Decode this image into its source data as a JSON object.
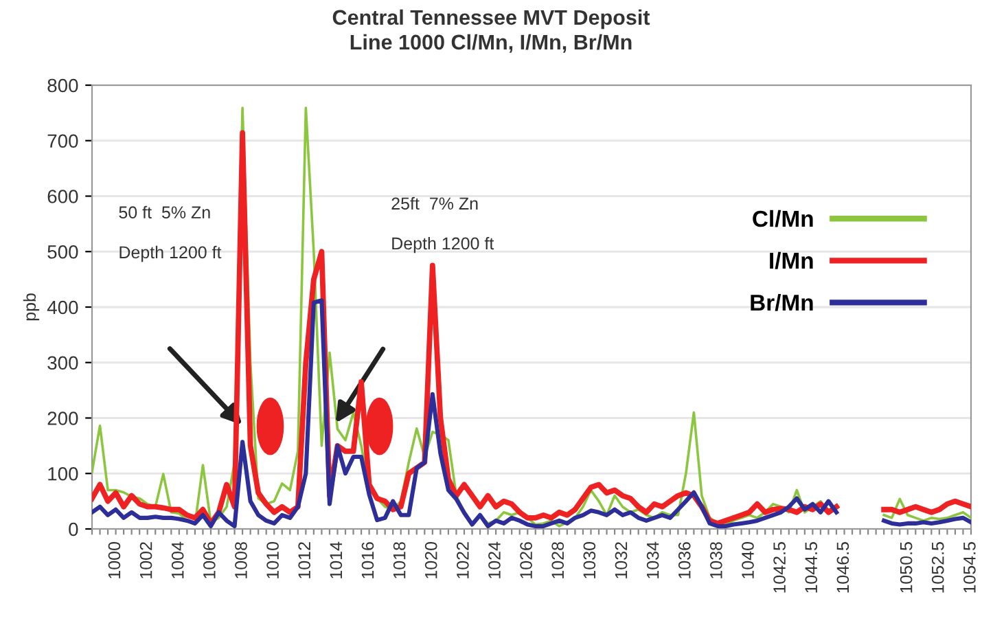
{
  "chart_data": {
    "type": "line",
    "title": "Central Tennessee MVT Deposit",
    "subtitle": "Line 1000 Cl/Mn, I/Mn, Br/Mn",
    "ylabel": "ppb",
    "categories": [
      null,
      null,
      null,
      "1000",
      null,
      null,
      null,
      "1002",
      null,
      null,
      null,
      "1004",
      null,
      null,
      null,
      "1006",
      null,
      null,
      null,
      "1008",
      null,
      null,
      null,
      "1010",
      null,
      null,
      null,
      "1012",
      null,
      null,
      null,
      "1014",
      null,
      null,
      null,
      "1016",
      null,
      null,
      null,
      "1018",
      null,
      null,
      null,
      "1020",
      null,
      null,
      null,
      "1022",
      null,
      null,
      null,
      "1024",
      null,
      null,
      null,
      "1026",
      null,
      null,
      null,
      "1028",
      null,
      null,
      null,
      "1030",
      null,
      null,
      null,
      "1032",
      null,
      null,
      null,
      "1034",
      null,
      null,
      null,
      "1036",
      null,
      null,
      null,
      "1038",
      null,
      null,
      null,
      "1040",
      null,
      null,
      null,
      "1042.5",
      null,
      null,
      null,
      "1044.5",
      null,
      null,
      null,
      "1046.5",
      null,
      null,
      null,
      null,
      null,
      null,
      null,
      "1050.5",
      null,
      null,
      null,
      "1052.5",
      null,
      null,
      null,
      "1054.5"
    ],
    "series": [
      {
        "name": "Cl/Mn",
        "color": "#8cc63f",
        "values": [
          103,
          186,
          70,
          70,
          66,
          58,
          55,
          45,
          40,
          99,
          30,
          28,
          15,
          8,
          115,
          12,
          20,
          40,
          120,
          759,
          300,
          55,
          45,
          50,
          82,
          70,
          140,
          759,
          500,
          150,
          318,
          180,
          160,
          210,
          150,
          70,
          55,
          40,
          35,
          50,
          120,
          181,
          130,
          175,
          170,
          160,
          60,
          30,
          10,
          25,
          10,
          15,
          30,
          25,
          30,
          20,
          8,
          10,
          15,
          5,
          12,
          20,
          40,
          70,
          50,
          25,
          60,
          40,
          30,
          35,
          25,
          20,
          30,
          25,
          25,
          100,
          210,
          60,
          20,
          10,
          8,
          15,
          20,
          25,
          20,
          30,
          45,
          40,
          30,
          70,
          30,
          40,
          50,
          30,
          40,
          null,
          null,
          null,
          null,
          null,
          25,
          20,
          54,
          25,
          20,
          15,
          20,
          18,
          20,
          25,
          30,
          20
        ]
      },
      {
        "name": "I/Mn",
        "color": "#ee2222",
        "values": [
          55,
          80,
          50,
          65,
          40,
          60,
          45,
          40,
          40,
          38,
          35,
          35,
          25,
          20,
          35,
          10,
          30,
          80,
          40,
          714,
          150,
          65,
          45,
          30,
          40,
          30,
          40,
          300,
          450,
          500,
          60,
          150,
          140,
          140,
          265,
          80,
          55,
          50,
          35,
          40,
          100,
          110,
          120,
          475,
          200,
          90,
          60,
          80,
          60,
          40,
          60,
          40,
          50,
          45,
          30,
          20,
          20,
          25,
          20,
          30,
          25,
          35,
          55,
          75,
          80,
          65,
          70,
          60,
          55,
          40,
          30,
          45,
          40,
          50,
          60,
          65,
          60,
          40,
          15,
          10,
          15,
          20,
          25,
          30,
          45,
          30,
          35,
          37,
          35,
          30,
          40,
          35,
          45,
          30,
          40,
          null,
          null,
          null,
          null,
          null,
          35,
          35,
          30,
          35,
          40,
          35,
          30,
          35,
          45,
          50,
          45,
          40
        ]
      },
      {
        "name": "Br/Mn",
        "color": "#2e2e99",
        "values": [
          30,
          40,
          25,
          35,
          20,
          30,
          20,
          20,
          22,
          20,
          20,
          18,
          15,
          10,
          25,
          5,
          30,
          15,
          5,
          157,
          50,
          25,
          15,
          10,
          25,
          20,
          40,
          100,
          408,
          412,
          45,
          150,
          100,
          130,
          130,
          62,
          16,
          20,
          50,
          25,
          25,
          110,
          120,
          243,
          136,
          70,
          54,
          29,
          8,
          25,
          5,
          15,
          10,
          20,
          15,
          8,
          5,
          5,
          10,
          15,
          10,
          20,
          25,
          33,
          30,
          25,
          35,
          25,
          30,
          20,
          15,
          20,
          25,
          20,
          35,
          50,
          66,
          40,
          10,
          5,
          5,
          8,
          10,
          12,
          15,
          20,
          25,
          30,
          40,
          55,
          35,
          45,
          30,
          50,
          30,
          null,
          null,
          null,
          null,
          null,
          15,
          10,
          8,
          10,
          10,
          12,
          10,
          12,
          15,
          18,
          20,
          12
        ]
      }
    ],
    "ylim": [
      0,
      800
    ],
    "yticks": [
      0,
      100,
      200,
      300,
      400,
      500,
      600,
      700,
      800
    ],
    "grid": "y",
    "legend": "right",
    "annotations": [
      "50 ft  5% Zn",
      "Depth 1200 ft",
      "25ft  7% Zn",
      "Depth 1200 ft"
    ]
  }
}
